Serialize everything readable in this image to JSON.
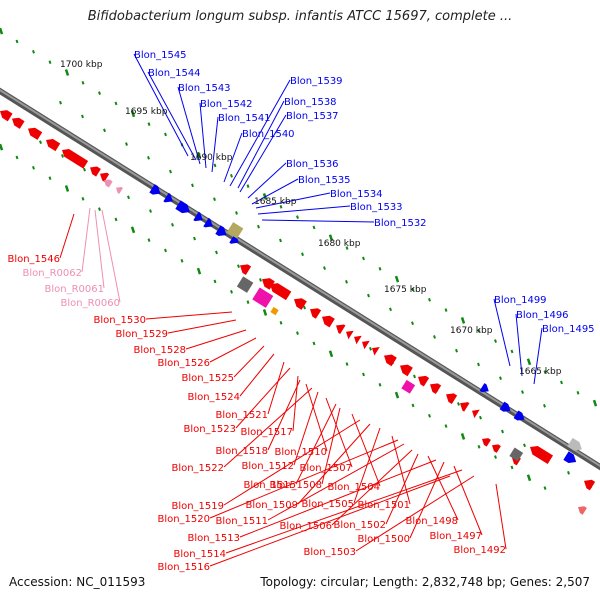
{
  "title": "Bifidobacterium longum subsp. infantis ATCC 15697, complete ...",
  "accession": "Accession: NC_011593",
  "summary": "Topology: circular; Length: 2,832,748 bp; Genes: 2,507",
  "colors": {
    "forward_cds": "#0000ee",
    "reverse_cds": "#ee0000",
    "rna": "#ee8fb4",
    "backbone": "#777777",
    "ticks": "#118811",
    "olive": "#b4a860",
    "dark_grey": "#666666",
    "magenta": "#ee11aa",
    "orange": "#ee9900"
  },
  "scale_labels": [
    "1700 kbp",
    "1695 kbp",
    "1690 kbp",
    "1685 kbp",
    "1680 kbp",
    "1675 kbp",
    "1670 kbp",
    "1665 kbp"
  ],
  "forward_labels": [
    "Blon_1545",
    "Blon_1544",
    "Blon_1543",
    "Blon_1542",
    "Blon_1541",
    "Blon_1540",
    "Blon_1539",
    "Blon_1538",
    "Blon_1537",
    "Blon_1536",
    "Blon_1535",
    "Blon_1534",
    "Blon_1533",
    "Blon_1532",
    "Blon_1499",
    "Blon_1496",
    "Blon_1495"
  ],
  "rna_labels": [
    "Blon_R0062",
    "Blon_R0061",
    "Blon_R0060"
  ],
  "reverse_labels": [
    "Blon_1546",
    "Blon_1530",
    "Blon_1529",
    "Blon_1528",
    "Blon_1526",
    "Blon_1525",
    "Blon_1524",
    "Blon_1521",
    "Blon_1523",
    "Blon_1517",
    "Blon_1518",
    "Blon_1510",
    "Blon_1522",
    "Blon_1512",
    "Blon_1507",
    "Blon_1515",
    "Blon_1508",
    "Blon_1504",
    "Blon_1519",
    "Blon_1509",
    "Blon_1505",
    "Blon_1501",
    "Blon_1520",
    "Blon_1511",
    "Blon_1506",
    "Blon_1502",
    "Blon_1498",
    "Blon_1513",
    "Blon_1500",
    "Blon_1497",
    "Blon_1514",
    "Blon_1503",
    "Blon_1492",
    "Blon_1516"
  ]
}
